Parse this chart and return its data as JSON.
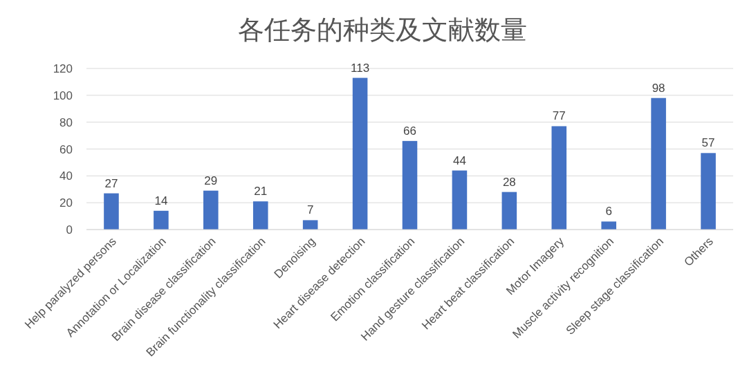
{
  "chart_data": {
    "type": "bar",
    "title": "各任务的种类及文献数量",
    "categories": [
      "Help paralyzed persons",
      "Annotation or Localization",
      "Brain disease classification",
      "Brain functionality classification",
      "Denoising",
      "Heart disease detection",
      "Emotion classification",
      "Hand gesture classification",
      "Heart beat classification",
      "Motor Imagery",
      "Muscle activity recognition",
      "Sleep stage classification",
      "Others"
    ],
    "values": [
      27,
      14,
      29,
      21,
      7,
      113,
      66,
      44,
      28,
      77,
      6,
      98,
      57
    ],
    "color": "#4472c4",
    "ylim": [
      0,
      120
    ],
    "yticks": [
      0,
      20,
      40,
      60,
      80,
      100,
      120
    ],
    "grid": "y",
    "data_labels": true
  }
}
